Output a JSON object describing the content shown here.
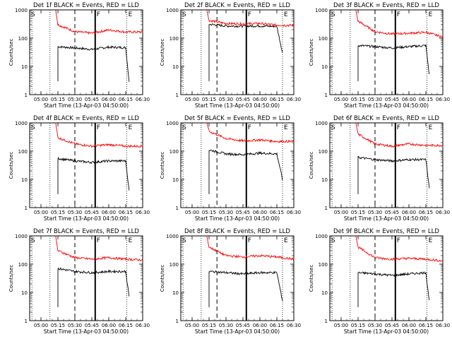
{
  "figure": {
    "ylabel": "Counts/sec",
    "xlabel": "Start Time (13-Apr-03 04:50:00)",
    "x_tick_labels": [
      "05:00",
      "05:15",
      "05:30",
      "05:45",
      "06:00",
      "06:15",
      "06:30"
    ],
    "y_tick_labels": [
      "1",
      "10",
      "100",
      "1000"
    ],
    "marker_labels": [
      "S",
      "F",
      "E"
    ]
  },
  "chart_data": [
    {
      "type": "line",
      "title": "Det 1f BLACK = Events, RED = LLD",
      "xlabel": "Start Time (13-Apr-03 04:50:00)",
      "ylabel": "Counts/sec",
      "ylog": true,
      "ylim": [
        1,
        1000
      ],
      "xlim": [
        "04:50",
        "06:30"
      ],
      "series": [
        {
          "name": "BLACK = Events",
          "color": "#000000",
          "x": [
            "05:15",
            "05:30",
            "05:45",
            "06:00",
            "06:15",
            "06:18"
          ],
          "values": [
            50,
            45,
            40,
            48,
            46,
            3
          ]
        },
        {
          "name": "RED = LLD",
          "color": "#ff0000",
          "x": [
            "05:15",
            "05:30",
            "05:45",
            "06:00",
            "06:15",
            "06:30"
          ],
          "values": [
            300,
            170,
            150,
            195,
            165,
            165
          ]
        }
      ]
    },
    {
      "type": "line",
      "title": "Det 2f BLACK = Events, RED = LLD",
      "xlabel": "Start Time (13-Apr-03 04:50:00)",
      "ylabel": "Counts/sec",
      "ylog": true,
      "ylim": [
        1,
        1000
      ],
      "xlim": [
        "04:50",
        "06:30"
      ],
      "series": [
        {
          "name": "BLACK = Events",
          "color": "#000000",
          "x": [
            "05:15",
            "05:30",
            "05:45",
            "06:00",
            "06:15",
            "06:20"
          ],
          "values": [
            310,
            270,
            265,
            270,
            260,
            30
          ]
        },
        {
          "name": "RED = LLD",
          "color": "#ff0000",
          "x": [
            "05:15",
            "05:30",
            "05:45",
            "06:00",
            "06:15",
            "06:30"
          ],
          "values": [
            420,
            330,
            320,
            330,
            290,
            280
          ]
        }
      ]
    },
    {
      "type": "line",
      "title": "Det 3f BLACK = Events, RED = LLD",
      "xlabel": "Start Time (13-Apr-03 04:50:00)",
      "ylabel": "Counts/sec",
      "ylog": true,
      "ylim": [
        1,
        1000
      ],
      "xlim": [
        "04:50",
        "06:30"
      ],
      "series": [
        {
          "name": "BLACK = Events",
          "color": "#000000",
          "x": [
            "05:15",
            "05:30",
            "05:45",
            "06:00",
            "06:15",
            "06:18"
          ],
          "values": [
            55,
            50,
            45,
            50,
            55,
            5
          ]
        },
        {
          "name": "RED = LLD",
          "color": "#ff0000",
          "x": [
            "05:15",
            "05:30",
            "05:45",
            "06:00",
            "06:15",
            "06:30"
          ],
          "values": [
            400,
            170,
            140,
            150,
            160,
            110
          ]
        }
      ]
    },
    {
      "type": "line",
      "title": "Det 4f BLACK = Events, RED = LLD",
      "xlabel": "Start Time (13-Apr-03 04:50:00)",
      "ylabel": "Counts/sec",
      "ylog": true,
      "ylim": [
        1,
        1000
      ],
      "xlim": [
        "04:50",
        "06:30"
      ],
      "series": [
        {
          "name": "BLACK = Events",
          "color": "#000000",
          "x": [
            "05:15",
            "05:30",
            "05:45",
            "06:00",
            "06:15",
            "06:18"
          ],
          "values": [
            55,
            45,
            40,
            45,
            45,
            4
          ]
        },
        {
          "name": "RED = LLD",
          "color": "#ff0000",
          "x": [
            "05:15",
            "05:30",
            "05:45",
            "06:00",
            "06:15",
            "06:30"
          ],
          "values": [
            300,
            180,
            150,
            170,
            150,
            150
          ]
        }
      ]
    },
    {
      "type": "line",
      "title": "Det 5f BLACK = Events, RED = LLD",
      "xlabel": "Start Time (13-Apr-03 04:50:00)",
      "ylabel": "Counts/sec",
      "ylog": true,
      "ylim": [
        1,
        1000
      ],
      "xlim": [
        "04:50",
        "06:30"
      ],
      "series": [
        {
          "name": "BLACK = Events",
          "color": "#000000",
          "x": [
            "05:15",
            "05:30",
            "05:45",
            "06:00",
            "06:15",
            "06:20"
          ],
          "values": [
            110,
            80,
            75,
            85,
            80,
            10
          ]
        },
        {
          "name": "RED = LLD",
          "color": "#ff0000",
          "x": [
            "05:15",
            "05:30",
            "05:45",
            "06:00",
            "06:15",
            "06:30"
          ],
          "values": [
            500,
            280,
            230,
            250,
            220,
            220
          ]
        }
      ]
    },
    {
      "type": "line",
      "title": "Det 6f BLACK = Events, RED = LLD",
      "xlabel": "Start Time (13-Apr-03 04:50:00)",
      "ylabel": "Counts/sec",
      "ylog": true,
      "ylim": [
        1,
        1000
      ],
      "xlim": [
        "04:50",
        "06:30"
      ],
      "series": [
        {
          "name": "BLACK = Events",
          "color": "#000000",
          "x": [
            "05:15",
            "05:30",
            "05:45",
            "06:00",
            "06:15",
            "06:18"
          ],
          "values": [
            60,
            50,
            45,
            50,
            50,
            5
          ]
        },
        {
          "name": "RED = LLD",
          "color": "#ff0000",
          "x": [
            "05:15",
            "05:30",
            "05:45",
            "06:00",
            "06:15",
            "06:30"
          ],
          "values": [
            400,
            180,
            150,
            180,
            160,
            160
          ]
        }
      ]
    },
    {
      "type": "line",
      "title": "Det 7f BLACK = Events, RED = LLD",
      "xlabel": "Start Time (13-Apr-03 04:50:00)",
      "ylabel": "Counts/sec",
      "ylog": true,
      "ylim": [
        1,
        1000
      ],
      "xlim": [
        "04:50",
        "06:30"
      ],
      "series": [
        {
          "name": "BLACK = Events",
          "color": "#000000",
          "x": [
            "05:15",
            "05:30",
            "05:45",
            "06:00",
            "06:15",
            "06:18"
          ],
          "values": [
            70,
            55,
            50,
            55,
            55,
            7
          ]
        },
        {
          "name": "RED = LLD",
          "color": "#ff0000",
          "x": [
            "05:15",
            "05:30",
            "05:45",
            "06:00",
            "06:15",
            "06:30"
          ],
          "values": [
            300,
            170,
            150,
            170,
            150,
            140
          ]
        }
      ]
    },
    {
      "type": "line",
      "title": "Det 8f BLACK = Events, RED = LLD",
      "xlabel": "Start Time (13-Apr-03 04:50:00)",
      "ylabel": "Counts/sec",
      "ylog": true,
      "ylim": [
        1,
        1000
      ],
      "xlim": [
        "04:50",
        "06:30"
      ],
      "series": [
        {
          "name": "BLACK = Events",
          "color": "#000000",
          "x": [
            "05:15",
            "05:30",
            "05:45",
            "06:00",
            "06:15",
            "06:20"
          ],
          "values": [
            55,
            50,
            45,
            50,
            50,
            5
          ]
        },
        {
          "name": "RED = LLD",
          "color": "#ff0000",
          "x": [
            "05:15",
            "05:30",
            "05:45",
            "06:00",
            "06:15",
            "06:30"
          ],
          "values": [
            400,
            200,
            180,
            200,
            180,
            150
          ]
        }
      ]
    },
    {
      "type": "line",
      "title": "Det 9f BLACK = Events, RED = LLD",
      "xlabel": "Start Time (13-Apr-03 04:50:00)",
      "ylabel": "Counts/sec",
      "ylog": true,
      "ylim": [
        1,
        1000
      ],
      "xlim": [
        "04:50",
        "06:30"
      ],
      "series": [
        {
          "name": "BLACK = Events",
          "color": "#000000",
          "x": [
            "05:15",
            "05:30",
            "05:45",
            "06:00",
            "06:15",
            "06:18"
          ],
          "values": [
            50,
            45,
            40,
            45,
            50,
            5
          ]
        },
        {
          "name": "RED = LLD",
          "color": "#ff0000",
          "x": [
            "05:15",
            "05:30",
            "05:45",
            "06:00",
            "06:15",
            "06:30"
          ],
          "values": [
            400,
            170,
            150,
            160,
            150,
            130
          ]
        }
      ]
    }
  ]
}
